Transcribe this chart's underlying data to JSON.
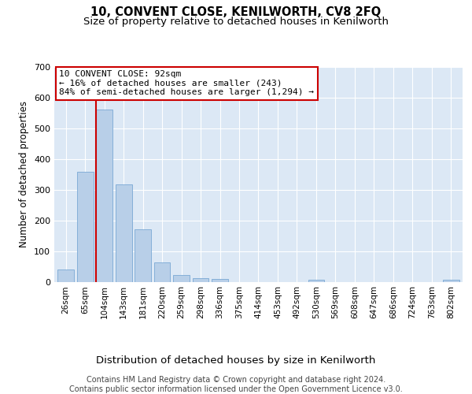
{
  "title": "10, CONVENT CLOSE, KENILWORTH, CV8 2FQ",
  "subtitle": "Size of property relative to detached houses in Kenilworth",
  "xlabel": "Distribution of detached houses by size in Kenilworth",
  "ylabel": "Number of detached properties",
  "categories": [
    "26sqm",
    "65sqm",
    "104sqm",
    "143sqm",
    "181sqm",
    "220sqm",
    "259sqm",
    "298sqm",
    "336sqm",
    "375sqm",
    "414sqm",
    "453sqm",
    "492sqm",
    "530sqm",
    "569sqm",
    "608sqm",
    "647sqm",
    "686sqm",
    "724sqm",
    "763sqm",
    "802sqm"
  ],
  "values": [
    40,
    358,
    560,
    318,
    170,
    62,
    23,
    12,
    8,
    0,
    0,
    0,
    0,
    7,
    0,
    0,
    0,
    0,
    0,
    0,
    7
  ],
  "bar_color": "#b8cfe8",
  "bar_edgecolor": "#7aa8d4",
  "vline_color": "#cc0000",
  "vline_pos": 1.57,
  "annotation_text": "10 CONVENT CLOSE: 92sqm\n← 16% of detached houses are smaller (243)\n84% of semi-detached houses are larger (1,294) →",
  "annotation_box_edgecolor": "#cc0000",
  "ylim_max": 700,
  "yticks": [
    0,
    100,
    200,
    300,
    400,
    500,
    600,
    700
  ],
  "bg_color": "#dce8f5",
  "footer_line1": "Contains HM Land Registry data © Crown copyright and database right 2024.",
  "footer_line2": "Contains public sector information licensed under the Open Government Licence v3.0."
}
